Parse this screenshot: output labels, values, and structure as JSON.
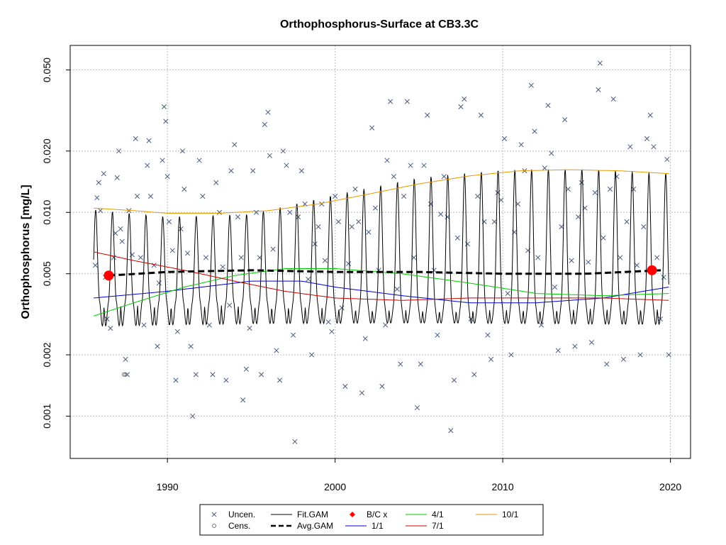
{
  "chart_data": {
    "type": "line",
    "title": "Orthophosphorus-Surface at CB3.3C",
    "xlabel": "",
    "ylabel": "Orthophosphorus [mg/L]",
    "log_y": true,
    "xlim": [
      1984.2,
      2021.2
    ],
    "ylim": [
      0.00062,
      0.066
    ],
    "x_ticks": [
      1990,
      2000,
      2010,
      2020
    ],
    "y_ticks": [
      0.001,
      0.002,
      0.005,
      0.01,
      0.02,
      0.05
    ],
    "y_tick_labels": [
      "0.001",
      "0.002",
      "0.005",
      "0.010",
      "0.020",
      "0.050"
    ],
    "grid": true,
    "legend_position": "bottom-center",
    "colors": {
      "uncen": "#4a5a80",
      "cens": "#777777",
      "fit_gam": "#000000",
      "avg_gam": "#000000",
      "bc": "#ff0000",
      "s_1_1": "#0000cc",
      "s_4_1": "#00cc00",
      "s_7_1": "#cc0000",
      "s_10_1": "#e69900",
      "grid": "#bbbbbb"
    },
    "legend": [
      {
        "label": "Uncen.",
        "symbol": "x",
        "color": "#4a5a80"
      },
      {
        "label": "Fit.GAM",
        "symbol": "line",
        "color": "#000000"
      },
      {
        "label": "B/C x",
        "symbol": "diamond",
        "color": "#ff0000"
      },
      {
        "label": "4/1",
        "symbol": "line",
        "color": "#00cc00"
      },
      {
        "label": "10/1",
        "symbol": "line",
        "color": "#e69900"
      },
      {
        "label": "Cens.",
        "symbol": "o",
        "color": "#777777"
      },
      {
        "label": "Avg.GAM",
        "symbol": "dash",
        "color": "#000000"
      },
      {
        "label": "1/1",
        "symbol": "line",
        "color": "#0000cc"
      },
      {
        "label": "7/1",
        "symbol": "line",
        "color": "#cc0000"
      }
    ],
    "bc_points": [
      {
        "x": 1986.5,
        "y": 0.0049
      },
      {
        "x": 2018.9,
        "y": 0.0052
      }
    ],
    "avg_gam": {
      "x": [
        1986.5,
        1990,
        1995,
        2000,
        2005,
        2010,
        2015,
        2019.5
      ],
      "y": [
        0.0049,
        0.0051,
        0.0052,
        0.0051,
        0.0051,
        0.005,
        0.005,
        0.0052
      ]
    },
    "fit_gam": {
      "x_start": 1985.6,
      "x_end": 2019.9,
      "period_years": 1.0,
      "peak_month_frac": 0.72,
      "baseline": [
        [
          1985.6,
          0.0035
        ],
        [
          1995,
          0.0035
        ],
        [
          2005,
          0.0033
        ],
        [
          2019.9,
          0.0034
        ]
      ],
      "peak": [
        [
          1985.6,
          0.0103
        ],
        [
          1990,
          0.0095
        ],
        [
          1995,
          0.0098
        ],
        [
          2000,
          0.0122
        ],
        [
          2005,
          0.0148
        ],
        [
          2010,
          0.0162
        ],
        [
          2015,
          0.0163
        ],
        [
          2019.9,
          0.0155
        ]
      ],
      "trough": [
        [
          1985.6,
          0.0025
        ],
        [
          1995,
          0.0026
        ],
        [
          2005,
          0.0027
        ],
        [
          2019.9,
          0.0026
        ]
      ]
    },
    "series": [
      {
        "name": "1/1",
        "x": [
          1985.6,
          1990,
          1995,
          1998,
          2000,
          2004,
          2008,
          2012,
          2016,
          2019.9
        ],
        "y": [
          0.0038,
          0.0041,
          0.0046,
          0.0046,
          0.0043,
          0.0039,
          0.0036,
          0.0036,
          0.0038,
          0.0043
        ]
      },
      {
        "name": "4/1",
        "x": [
          1985.6,
          1988,
          1991,
          1994,
          1997,
          2000,
          2004,
          2008,
          2012,
          2016,
          2019.9
        ],
        "y": [
          0.0031,
          0.0036,
          0.0043,
          0.0049,
          0.0053,
          0.0053,
          0.005,
          0.0045,
          0.004,
          0.0039,
          0.004
        ]
      },
      {
        "name": "7/1",
        "x": [
          1985.6,
          1988,
          1991,
          1994,
          1997,
          2000,
          2004,
          2008,
          2012,
          2016,
          2019.9
        ],
        "y": [
          0.0064,
          0.0058,
          0.0052,
          0.0046,
          0.0041,
          0.0038,
          0.0037,
          0.0038,
          0.0038,
          0.0038,
          0.0037
        ]
      },
      {
        "name": "10/1",
        "x": [
          1985.6,
          1988,
          1990,
          1993,
          1996,
          1999,
          2002,
          2005,
          2008,
          2011,
          2014,
          2017,
          2019.9
        ],
        "y": [
          0.0105,
          0.0102,
          0.0099,
          0.0099,
          0.0102,
          0.011,
          0.0123,
          0.0138,
          0.0151,
          0.016,
          0.0162,
          0.016,
          0.0155
        ]
      }
    ],
    "uncen_points": [
      [
        1985.7,
        0.0055
      ],
      [
        1985.8,
        0.0118
      ],
      [
        1985.9,
        0.014
      ],
      [
        1986.0,
        0.0102
      ],
      [
        1986.2,
        0.0155
      ],
      [
        1986.3,
        0.0048
      ],
      [
        1986.4,
        0.003
      ],
      [
        1986.6,
        0.0027
      ],
      [
        1986.8,
        0.006
      ],
      [
        1986.9,
        0.0079
      ],
      [
        1987.0,
        0.0148
      ],
      [
        1987.1,
        0.02
      ],
      [
        1987.2,
        0.0083
      ],
      [
        1987.3,
        0.0072
      ],
      [
        1987.5,
        0.0019
      ],
      [
        1987.6,
        0.0016
      ],
      [
        1987.7,
        0.0102
      ],
      [
        1987.9,
        0.0062
      ],
      [
        1988.1,
        0.023
      ],
      [
        1988.2,
        0.012
      ],
      [
        1988.4,
        0.006
      ],
      [
        1988.6,
        0.0028
      ],
      [
        1988.8,
        0.017
      ],
      [
        1988.9,
        0.0225
      ],
      [
        1989.0,
        0.012
      ],
      [
        1989.2,
        0.0055
      ],
      [
        1989.4,
        0.0022
      ],
      [
        1989.5,
        0.0045
      ],
      [
        1989.7,
        0.018
      ],
      [
        1989.8,
        0.033
      ],
      [
        1989.9,
        0.028
      ],
      [
        1990.0,
        0.015
      ],
      [
        1990.1,
        0.009
      ],
      [
        1990.3,
        0.0065
      ],
      [
        1990.5,
        0.0015
      ],
      [
        1990.6,
        0.0026
      ],
      [
        1990.8,
        0.0083
      ],
      [
        1990.9,
        0.02
      ],
      [
        1991.0,
        0.013
      ],
      [
        1991.2,
        0.0063
      ],
      [
        1991.4,
        0.0022
      ],
      [
        1991.5,
        0.001
      ],
      [
        1991.7,
        0.0016
      ],
      [
        1991.9,
        0.018
      ],
      [
        1992.1,
        0.012
      ],
      [
        1992.3,
        0.006
      ],
      [
        1992.5,
        0.0028
      ],
      [
        1992.7,
        0.0016
      ],
      [
        1992.9,
        0.014
      ],
      [
        1993.1,
        0.01
      ],
      [
        1993.3,
        0.0054
      ],
      [
        1993.5,
        0.0015
      ],
      [
        1993.7,
        0.0035
      ],
      [
        1993.8,
        0.016
      ],
      [
        1994.0,
        0.0215
      ],
      [
        1994.2,
        0.0095
      ],
      [
        1994.4,
        0.006
      ],
      [
        1994.5,
        0.0012
      ],
      [
        1994.7,
        0.0017
      ],
      [
        1994.9,
        0.0027
      ],
      [
        1995.1,
        0.016
      ],
      [
        1995.3,
        0.01
      ],
      [
        1995.5,
        0.006
      ],
      [
        1995.6,
        0.0016
      ],
      [
        1995.8,
        0.027
      ],
      [
        1996.0,
        0.031
      ],
      [
        1996.1,
        0.019
      ],
      [
        1996.3,
        0.0066
      ],
      [
        1996.5,
        0.0021
      ],
      [
        1996.7,
        0.0015
      ],
      [
        1996.9,
        0.02
      ],
      [
        1997.1,
        0.017
      ],
      [
        1997.3,
        0.01
      ],
      [
        1997.5,
        0.0025
      ],
      [
        1997.6,
        0.00075
      ],
      [
        1997.8,
        0.0095
      ],
      [
        1998.0,
        0.016
      ],
      [
        1998.2,
        0.011
      ],
      [
        1998.4,
        0.0047
      ],
      [
        1998.6,
        0.002
      ],
      [
        1998.8,
        0.007
      ],
      [
        1999.0,
        0.0085
      ],
      [
        1999.2,
        0.011
      ],
      [
        1999.4,
        0.0058
      ],
      [
        1999.6,
        0.0029
      ],
      [
        1999.8,
        0.0026
      ],
      [
        2000.0,
        0.012
      ],
      [
        2000.2,
        0.009
      ],
      [
        2000.4,
        0.0034
      ],
      [
        2000.6,
        0.0014
      ],
      [
        2000.8,
        0.0056
      ],
      [
        2001.0,
        0.0085
      ],
      [
        2001.2,
        0.013
      ],
      [
        2001.4,
        0.009
      ],
      [
        2001.6,
        0.0013
      ],
      [
        2001.8,
        0.0024
      ],
      [
        2002.0,
        0.008
      ],
      [
        2002.2,
        0.026
      ],
      [
        2002.4,
        0.0105
      ],
      [
        2002.6,
        0.0052
      ],
      [
        2002.8,
        0.0014
      ],
      [
        2003.0,
        0.0028
      ],
      [
        2003.1,
        0.018
      ],
      [
        2003.3,
        0.035
      ],
      [
        2003.5,
        0.015
      ],
      [
        2003.7,
        0.0042
      ],
      [
        2003.9,
        0.0018
      ],
      [
        2004.1,
        0.012
      ],
      [
        2004.3,
        0.035
      ],
      [
        2004.5,
        0.017
      ],
      [
        2004.7,
        0.006
      ],
      [
        2004.9,
        0.0011
      ],
      [
        2005.1,
        0.0018
      ],
      [
        2005.3,
        0.017
      ],
      [
        2005.5,
        0.03
      ],
      [
        2005.7,
        0.011
      ],
      [
        2005.9,
        0.0052
      ],
      [
        2006.1,
        0.0025
      ],
      [
        2006.3,
        0.0098
      ],
      [
        2006.5,
        0.015
      ],
      [
        2006.7,
        0.0095
      ],
      [
        2006.9,
        0.00085
      ],
      [
        2007.1,
        0.0015
      ],
      [
        2007.3,
        0.0075
      ],
      [
        2007.5,
        0.033
      ],
      [
        2007.7,
        0.036
      ],
      [
        2007.9,
        0.007
      ],
      [
        2008.1,
        0.003
      ],
      [
        2008.3,
        0.0016
      ],
      [
        2008.5,
        0.012
      ],
      [
        2008.7,
        0.03
      ],
      [
        2008.9,
        0.009
      ],
      [
        2009.1,
        0.0025
      ],
      [
        2009.3,
        0.0019
      ],
      [
        2009.5,
        0.009
      ],
      [
        2009.7,
        0.0125
      ],
      [
        2009.9,
        0.0115
      ],
      [
        2010.1,
        0.023
      ],
      [
        2010.3,
        0.004
      ],
      [
        2010.5,
        0.002
      ],
      [
        2010.7,
        0.008
      ],
      [
        2010.9,
        0.011
      ],
      [
        2011.1,
        0.0215
      ],
      [
        2011.3,
        0.016
      ],
      [
        2011.5,
        0.0065
      ],
      [
        2011.7,
        0.042
      ],
      [
        2011.9,
        0.025
      ],
      [
        2012.1,
        0.006
      ],
      [
        2012.3,
        0.0028
      ],
      [
        2012.5,
        0.0165
      ],
      [
        2012.7,
        0.0335
      ],
      [
        2012.9,
        0.0195
      ],
      [
        2013.1,
        0.0043
      ],
      [
        2013.3,
        0.0021
      ],
      [
        2013.5,
        0.0085
      ],
      [
        2013.7,
        0.0285
      ],
      [
        2013.9,
        0.013
      ],
      [
        2014.1,
        0.0058
      ],
      [
        2014.3,
        0.0022
      ],
      [
        2014.5,
        0.0095
      ],
      [
        2014.7,
        0.014
      ],
      [
        2014.9,
        0.0105
      ],
      [
        2015.1,
        0.0057
      ],
      [
        2015.3,
        0.0023
      ],
      [
        2015.5,
        0.0125
      ],
      [
        2015.7,
        0.04
      ],
      [
        2015.8,
        0.054
      ],
      [
        2016.0,
        0.0075
      ],
      [
        2016.2,
        0.0018
      ],
      [
        2016.4,
        0.013
      ],
      [
        2016.6,
        0.036
      ],
      [
        2016.8,
        0.015
      ],
      [
        2017.0,
        0.006
      ],
      [
        2017.2,
        0.0019
      ],
      [
        2017.4,
        0.009
      ],
      [
        2017.6,
        0.021
      ],
      [
        2017.8,
        0.013
      ],
      [
        2018.0,
        0.0055
      ],
      [
        2018.2,
        0.002
      ],
      [
        2018.4,
        0.0085
      ],
      [
        2018.6,
        0.023
      ],
      [
        2018.8,
        0.03
      ],
      [
        2019.0,
        0.021
      ],
      [
        2019.2,
        0.006
      ],
      [
        2019.4,
        0.003
      ],
      [
        2019.6,
        0.0048
      ],
      [
        2019.8,
        0.0182
      ],
      [
        2019.9,
        0.002
      ]
    ],
    "cens_points": [
      [
        1987.4,
        0.0016
      ],
      [
        1987.5,
        0.0016
      ]
    ]
  }
}
